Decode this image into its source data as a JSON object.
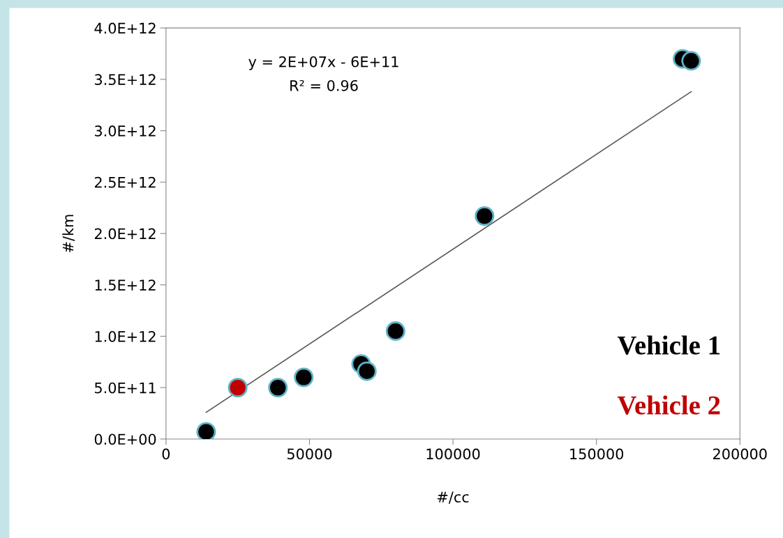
{
  "chart_data": {
    "type": "scatter",
    "xlabel": "#/cc",
    "ylabel": "#/km",
    "xlim": [
      0,
      200000
    ],
    "xticks": [
      0,
      50000,
      100000,
      150000,
      200000
    ],
    "ylim": [
      0,
      4000000000000.0
    ],
    "yticks": [
      {
        "value": 0,
        "label": "0.0E+00"
      },
      {
        "value": 500000000000.0,
        "label": "5.0E+11"
      },
      {
        "value": 1000000000000.0,
        "label": "1.0E+12"
      },
      {
        "value": 1500000000000.0,
        "label": "1.5E+12"
      },
      {
        "value": 2000000000000.0,
        "label": "2.0E+12"
      },
      {
        "value": 2500000000000.0,
        "label": "2.5E+12"
      },
      {
        "value": 3000000000000.0,
        "label": "3.0E+12"
      },
      {
        "value": 3500000000000.0,
        "label": "3.5E+12"
      },
      {
        "value": 4000000000000.0,
        "label": "4.0E+12"
      }
    ],
    "series": [
      {
        "name": "Vehicle 1",
        "color": "#000000",
        "marker": "circle",
        "x": [
          14000,
          39000,
          48000,
          68000,
          70000,
          80000,
          111000,
          180000,
          183000
        ],
        "values": [
          70000000000.0,
          500000000000.0,
          600000000000.0,
          730000000000.0,
          660000000000.0,
          1050000000000.0,
          2170000000000.0,
          3700000000000.0,
          3680000000000.0
        ]
      },
      {
        "name": "Vehicle 2",
        "color": "#c00000",
        "marker": "circle",
        "x": [
          25000
        ],
        "values": [
          500000000000.0
        ]
      },
      {
        "type": "line",
        "color": "#595959",
        "x": [
          14000,
          183000
        ],
        "values": [
          260000000000.0,
          3380000000000.0
        ]
      }
    ],
    "annotations": [
      "y = 2E+07x - 6E+11",
      "R² = 0.96"
    ],
    "legend": "bottom right",
    "grid": false
  }
}
